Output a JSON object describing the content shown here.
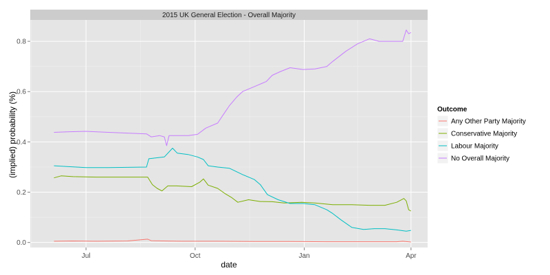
{
  "chart_data": {
    "type": "line",
    "title": "2015 UK General Election - Overall Majority",
    "xlabel": "date",
    "ylabel": "(implied) probability (%)",
    "x_ticks": [
      {
        "date": "2014-07-01",
        "label": "Jul"
      },
      {
        "date": "2014-10-01",
        "label": "Oct"
      },
      {
        "date": "2015-01-01",
        "label": "Jan"
      },
      {
        "date": "2015-04-01",
        "label": "Apr"
      }
    ],
    "xlim": [
      "2014-05-15",
      "2015-04-15"
    ],
    "ylim": [
      -0.02,
      0.885
    ],
    "y_ticks": [
      0.0,
      0.2,
      0.4,
      0.6,
      0.8
    ],
    "y_tick_labels": [
      "0.0",
      "0.2",
      "0.4",
      "0.6",
      "0.8"
    ],
    "grid": true,
    "legend": {
      "title": "Outcome",
      "position": "right"
    },
    "series": [
      {
        "name": "Any Other Party Majority",
        "color": "#F8766D",
        "points": [
          [
            "2014-06-04",
            0.005
          ],
          [
            "2014-06-20",
            0.006
          ],
          [
            "2014-07-10",
            0.005
          ],
          [
            "2014-08-05",
            0.006
          ],
          [
            "2014-08-22",
            0.013
          ],
          [
            "2014-08-25",
            0.007
          ],
          [
            "2014-09-05",
            0.006
          ],
          [
            "2014-09-20",
            0.005
          ],
          [
            "2014-10-20",
            0.005
          ],
          [
            "2014-11-20",
            0.004
          ],
          [
            "2014-12-20",
            0.004
          ],
          [
            "2015-01-20",
            0.003
          ],
          [
            "2015-02-20",
            0.003
          ],
          [
            "2015-03-20",
            0.003
          ],
          [
            "2015-03-25",
            0.005
          ],
          [
            "2015-04-01",
            0.002
          ]
        ]
      },
      {
        "name": "Conservative Majority",
        "color": "#7CAE00",
        "points": [
          [
            "2014-06-04",
            0.257
          ],
          [
            "2014-06-10",
            0.265
          ],
          [
            "2014-06-20",
            0.262
          ],
          [
            "2014-07-10",
            0.26
          ],
          [
            "2014-08-01",
            0.26
          ],
          [
            "2014-08-22",
            0.26
          ],
          [
            "2014-08-26",
            0.23
          ],
          [
            "2014-08-30",
            0.215
          ],
          [
            "2014-09-03",
            0.205
          ],
          [
            "2014-09-08",
            0.225
          ],
          [
            "2014-09-15",
            0.225
          ],
          [
            "2014-09-28",
            0.222
          ],
          [
            "2014-10-05",
            0.24
          ],
          [
            "2014-10-08",
            0.253
          ],
          [
            "2014-10-12",
            0.228
          ],
          [
            "2014-10-20",
            0.215
          ],
          [
            "2014-10-26",
            0.195
          ],
          [
            "2014-11-01",
            0.178
          ],
          [
            "2014-11-06",
            0.16
          ],
          [
            "2014-11-15",
            0.17
          ],
          [
            "2014-11-25",
            0.163
          ],
          [
            "2014-12-05",
            0.162
          ],
          [
            "2014-12-15",
            0.157
          ],
          [
            "2014-12-30",
            0.16
          ],
          [
            "2015-01-10",
            0.157
          ],
          [
            "2015-01-25",
            0.15
          ],
          [
            "2015-02-10",
            0.15
          ],
          [
            "2015-02-25",
            0.148
          ],
          [
            "2015-03-10",
            0.148
          ],
          [
            "2015-03-20",
            0.16
          ],
          [
            "2015-03-26",
            0.175
          ],
          [
            "2015-03-28",
            0.165
          ],
          [
            "2015-03-30",
            0.13
          ],
          [
            "2015-04-01",
            0.125
          ]
        ]
      },
      {
        "name": "Labour Majority",
        "color": "#00BFC4",
        "points": [
          [
            "2014-06-04",
            0.305
          ],
          [
            "2014-06-15",
            0.302
          ],
          [
            "2014-07-01",
            0.298
          ],
          [
            "2014-07-20",
            0.298
          ],
          [
            "2014-08-21",
            0.3
          ],
          [
            "2014-08-23",
            0.333
          ],
          [
            "2014-09-05",
            0.34
          ],
          [
            "2014-09-12",
            0.375
          ],
          [
            "2014-09-16",
            0.355
          ],
          [
            "2014-09-25",
            0.35
          ],
          [
            "2014-10-03",
            0.34
          ],
          [
            "2014-10-08",
            0.33
          ],
          [
            "2014-10-12",
            0.305
          ],
          [
            "2014-10-20",
            0.3
          ],
          [
            "2014-10-30",
            0.295
          ],
          [
            "2014-11-10",
            0.27
          ],
          [
            "2014-11-20",
            0.25
          ],
          [
            "2014-11-25",
            0.23
          ],
          [
            "2014-12-01",
            0.19
          ],
          [
            "2014-12-10",
            0.17
          ],
          [
            "2014-12-20",
            0.155
          ],
          [
            "2014-12-31",
            0.155
          ],
          [
            "2015-01-10",
            0.15
          ],
          [
            "2015-01-20",
            0.13
          ],
          [
            "2015-01-25",
            0.115
          ],
          [
            "2015-02-01",
            0.09
          ],
          [
            "2015-02-10",
            0.06
          ],
          [
            "2015-02-20",
            0.052
          ],
          [
            "2015-03-01",
            0.055
          ],
          [
            "2015-03-10",
            0.055
          ],
          [
            "2015-03-20",
            0.05
          ],
          [
            "2015-03-28",
            0.045
          ],
          [
            "2015-04-01",
            0.048
          ]
        ]
      },
      {
        "name": "No Overall Majority",
        "color": "#C77CFF",
        "points": [
          [
            "2014-06-04",
            0.438
          ],
          [
            "2014-06-15",
            0.44
          ],
          [
            "2014-07-01",
            0.442
          ],
          [
            "2014-07-20",
            0.438
          ],
          [
            "2014-08-21",
            0.432
          ],
          [
            "2014-08-25",
            0.42
          ],
          [
            "2014-09-01",
            0.425
          ],
          [
            "2014-09-05",
            0.42
          ],
          [
            "2014-09-07",
            0.385
          ],
          [
            "2014-09-09",
            0.425
          ],
          [
            "2014-09-25",
            0.425
          ],
          [
            "2014-10-03",
            0.43
          ],
          [
            "2014-10-10",
            0.455
          ],
          [
            "2014-10-20",
            0.475
          ],
          [
            "2014-10-25",
            0.51
          ],
          [
            "2014-10-30",
            0.545
          ],
          [
            "2014-11-05",
            0.578
          ],
          [
            "2014-11-10",
            0.6
          ],
          [
            "2014-11-20",
            0.62
          ],
          [
            "2014-11-30",
            0.64
          ],
          [
            "2014-12-05",
            0.665
          ],
          [
            "2014-12-12",
            0.68
          ],
          [
            "2014-12-20",
            0.695
          ],
          [
            "2014-12-31",
            0.688
          ],
          [
            "2015-01-10",
            0.69
          ],
          [
            "2015-01-20",
            0.7
          ],
          [
            "2015-01-25",
            0.72
          ],
          [
            "2015-02-05",
            0.76
          ],
          [
            "2015-02-15",
            0.79
          ],
          [
            "2015-02-25",
            0.81
          ],
          [
            "2015-03-05",
            0.8
          ],
          [
            "2015-03-15",
            0.8
          ],
          [
            "2015-03-25",
            0.8
          ],
          [
            "2015-03-28",
            0.845
          ],
          [
            "2015-03-30",
            0.83
          ],
          [
            "2015-04-01",
            0.835
          ]
        ]
      }
    ]
  }
}
